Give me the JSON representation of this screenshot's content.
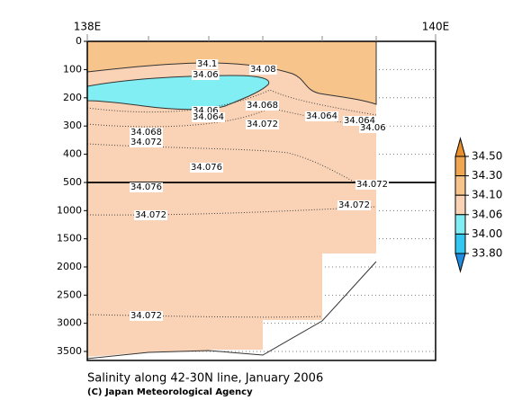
{
  "chart_data": {
    "type": "contour",
    "title": "Salinity along 42-30N line, January 2006",
    "credit": "(C) Japan Meteorological Agency",
    "xlim": [
      138,
      140
    ],
    "xticks": [
      {
        "value": 138,
        "label": "138E"
      },
      {
        "value": 140,
        "label": "140E"
      }
    ],
    "ylim": [
      0,
      500
    ],
    "yticks": [
      0,
      100,
      200,
      300,
      400,
      500
    ],
    "y_inverted": true,
    "lower_panel": {
      "ylim": [
        500,
        3660
      ],
      "yticks": [
        1000,
        1500,
        2000,
        2500,
        3000,
        3500
      ]
    },
    "grid": true,
    "colorbar": {
      "levels": [
        {
          "value": 34.5,
          "label": "34.50"
        },
        {
          "value": 34.3,
          "label": "34.30"
        },
        {
          "value": 34.1,
          "label": "34.10"
        },
        {
          "value": 34.06,
          "label": "34.06"
        },
        {
          "value": 34.0,
          "label": "34.00"
        },
        {
          "value": 33.8,
          "label": "33.80"
        }
      ],
      "colors": [
        "#e8902c",
        "#f0a650",
        "#f7c48c",
        "#fad3b6",
        "#80eef3",
        "#33c6ee",
        "#1e8ce0"
      ]
    },
    "annotations": [
      "34.1",
      "34.08",
      "34.06",
      "34.06",
      "34.064",
      "34.068",
      "34.072",
      "34.064",
      "34.064",
      "34.06",
      "34.068",
      "34.072",
      "34.076",
      "34.076",
      "34.072",
      "34.072",
      "34.072",
      "34.072"
    ]
  }
}
